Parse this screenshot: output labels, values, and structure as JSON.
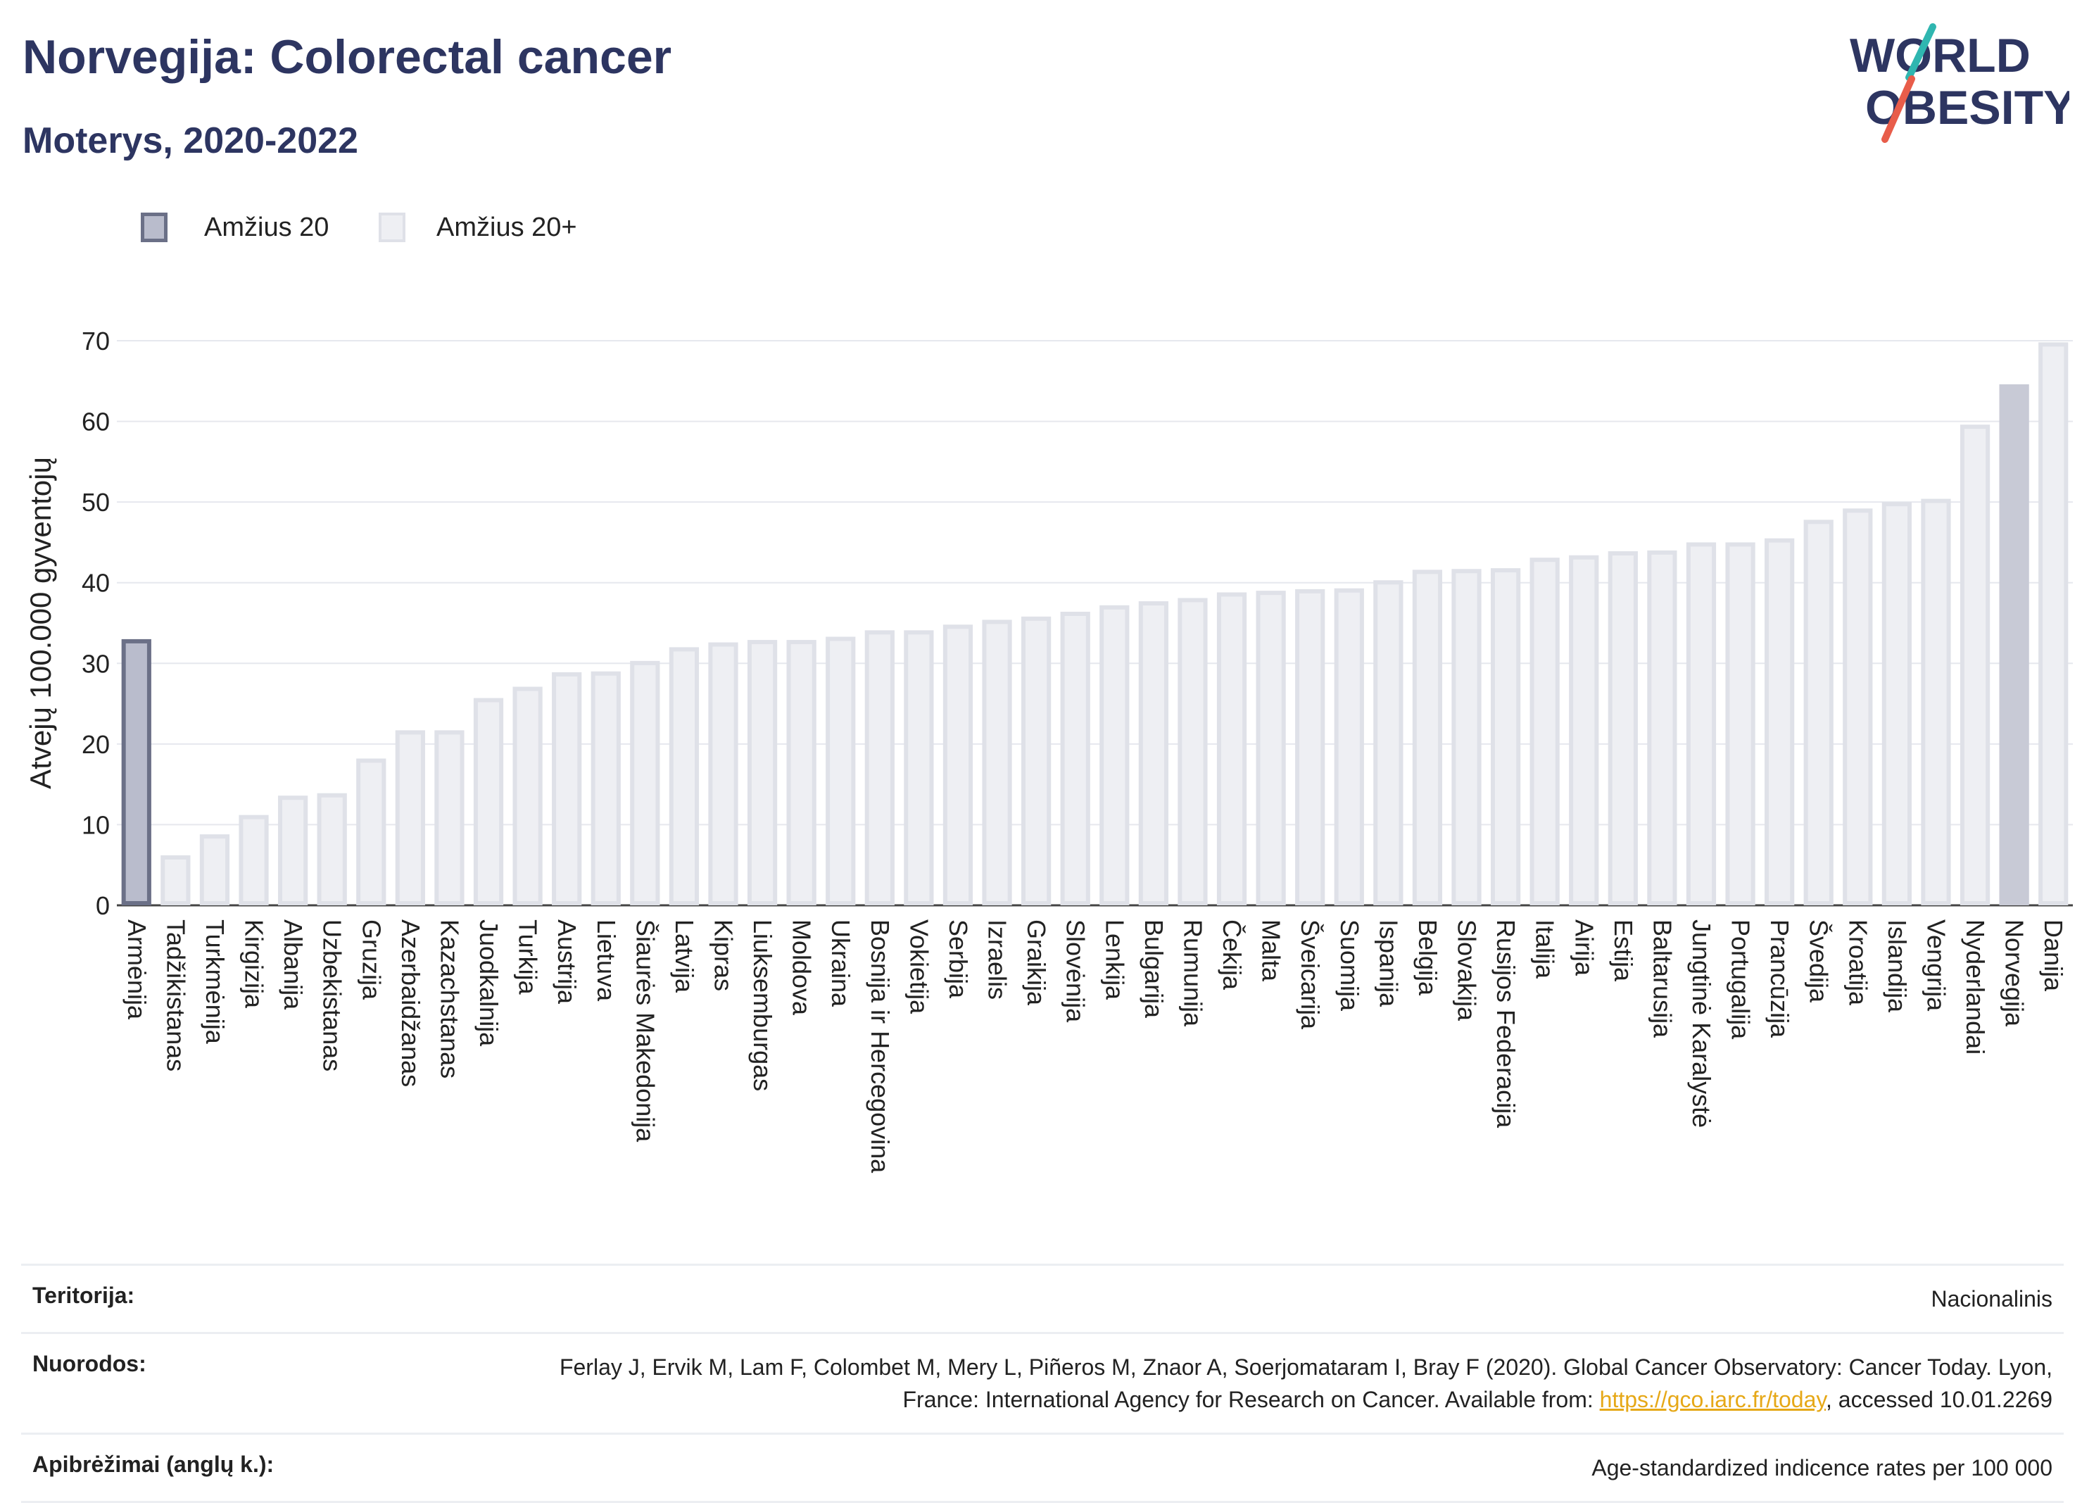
{
  "header": {
    "title": "Norvegija: Colorectal cancer",
    "subtitle": "Moterys, 2020-2022"
  },
  "logo": {
    "line1": "WORLD",
    "line2": "OBESITY"
  },
  "colors": {
    "title": "#2d3561",
    "bar_default_fill": "#eeeff3",
    "bar_default_stroke": "#dfe1e8",
    "bar_selected_fill": "#c8cad6",
    "bar_selected_stroke": "#c8cad6",
    "bar_age20_fill": "#b9bccc",
    "bar_age20_stroke": "#6b7087",
    "grid": "#e6e8ee",
    "link": "#e6a817",
    "logo_text": "#2d3561",
    "logo_slash_red": "#e85d4a",
    "logo_slash_teal": "#2fb6b0"
  },
  "legend": {
    "items": [
      {
        "label": "Amžius 20",
        "swatch": "age20"
      },
      {
        "label": "Amžius 20+",
        "swatch": "default"
      }
    ]
  },
  "chart_data": {
    "type": "bar",
    "ylabel": "Atvejų 100.000 gyventojų",
    "xlabel": "",
    "ylim": [
      0,
      70
    ],
    "yticks": [
      0,
      10,
      20,
      30,
      40,
      50,
      60,
      70
    ],
    "grid": true,
    "legend_position": "top-left",
    "categories": [
      "Armėnija",
      "Tadžikistanas",
      "Turkmėnija",
      "Kirgizija",
      "Albanija",
      "Uzbekistanas",
      "Gruzija",
      "Azerbaidžanas",
      "Kazachstanas",
      "Juodkalnija",
      "Turkija",
      "Austrija",
      "Lietuva",
      "Šiaurės Makedonija",
      "Latvija",
      "Kipras",
      "Liuksemburgas",
      "Moldova",
      "Ukraina",
      "Bosnija ir Hercegovina",
      "Vokietija",
      "Serbija",
      "Izraelis",
      "Graikija",
      "Slovėnija",
      "Lenkija",
      "Bulgarija",
      "Rumunija",
      "Čekija",
      "Malta",
      "Šveicarija",
      "Suomija",
      "Ispanija",
      "Belgija",
      "Slovakija",
      "Rusijos Federacija",
      "Italija",
      "Airija",
      "Estija",
      "Baltarusija",
      "Jungtinė Karalystė",
      "Portugalija",
      "Prancūzija",
      "Švedija",
      "Kroatija",
      "Islandija",
      "Vengrija",
      "Nyderlandai",
      "Norvegija",
      "Danija"
    ],
    "values": [
      33.0,
      6.2,
      8.8,
      11.2,
      13.6,
      13.9,
      18.2,
      21.7,
      21.7,
      25.7,
      27.1,
      28.9,
      29.0,
      30.3,
      32.0,
      32.6,
      32.9,
      32.9,
      33.3,
      34.1,
      34.1,
      34.8,
      35.4,
      35.8,
      36.4,
      37.2,
      37.7,
      38.1,
      38.8,
      39.0,
      39.2,
      39.3,
      40.3,
      41.6,
      41.7,
      41.8,
      43.1,
      43.4,
      43.9,
      44.0,
      45.0,
      45.0,
      45.5,
      47.8,
      49.2,
      50.0,
      50.4,
      59.6,
      64.6,
      69.8
    ],
    "bar_groups": [
      "age20",
      "default",
      "default",
      "default",
      "default",
      "default",
      "default",
      "default",
      "default",
      "default",
      "default",
      "default",
      "default",
      "default",
      "default",
      "default",
      "default",
      "default",
      "default",
      "default",
      "default",
      "default",
      "default",
      "default",
      "default",
      "default",
      "default",
      "default",
      "default",
      "default",
      "default",
      "default",
      "default",
      "default",
      "default",
      "default",
      "default",
      "default",
      "default",
      "default",
      "default",
      "default",
      "default",
      "default",
      "default",
      "default",
      "default",
      "default",
      "selected",
      "default"
    ]
  },
  "info": {
    "rows": [
      {
        "key": "Teritorija:",
        "value": "Nacionalinis"
      },
      {
        "key": "Nuorodos:",
        "value_before": "Ferlay J, Ervik M, Lam F, Colombet M, Mery L, Piñeros M, Znaor A, Soerjomataram I, Bray F (2020). Global Cancer Observatory: Cancer Today. Lyon, France: International Agency for Research on Cancer. Available from: ",
        "link": "https://gco.iarc.fr/today",
        "value_after": ", accessed 10.01.2269"
      },
      {
        "key": "Apibrėžimai (anglų k.):",
        "value": "Age-standardized indicence rates per 100 000"
      }
    ]
  }
}
